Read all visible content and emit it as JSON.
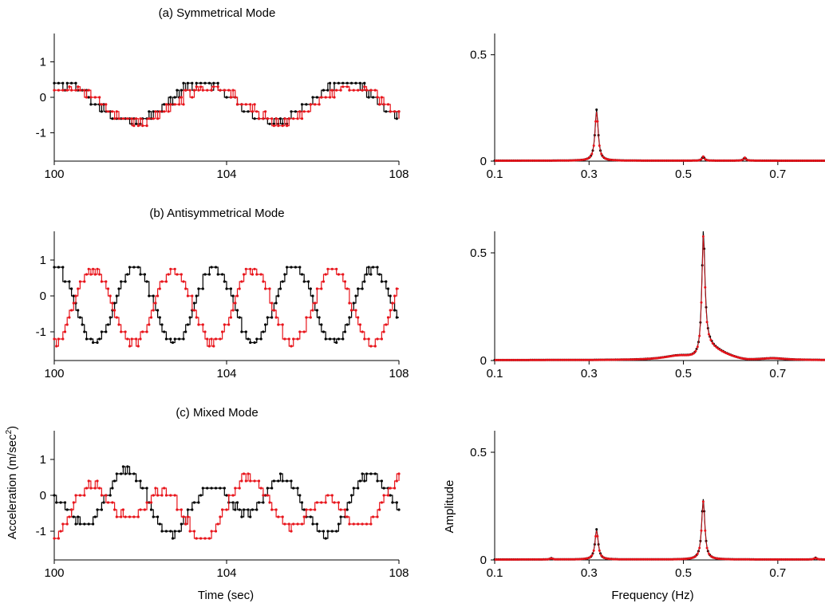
{
  "colors": {
    "series_1": "#000000",
    "series_2": "#e8141b",
    "axis": "#000000"
  },
  "labels": {
    "time_xlabel": "Time (sec)",
    "freq_xlabel": "Frequency (Hz)",
    "accel_ylabel": "Acceleration (m/sec",
    "accel_ylabel_sup": "2",
    "accel_ylabel_end": ")",
    "amp_ylabel": "Amplitude"
  },
  "chart_data": [
    {
      "type": "line",
      "title": "(a) Symmetrical Mode",
      "xlabel": "",
      "ylabel": "",
      "xlim": [
        100,
        108
      ],
      "ylim": [
        -1.8,
        1.8
      ],
      "xticks": [
        "100",
        "104",
        "108"
      ],
      "yticks": [
        "1",
        "0",
        "-1"
      ],
      "series": [
        {
          "color": "#000000",
          "period": 3.3,
          "phase": 0.7,
          "amp": 0.55,
          "offset": -0.15,
          "step": 0.2,
          "noise": 0.1,
          "x": [
            100,
            108
          ],
          "y_range": [
            -0.75,
            0.4
          ]
        },
        {
          "color": "#e8141b",
          "period": 3.3,
          "phase": 0.55,
          "amp": 0.5,
          "offset": -0.2,
          "step": 0.2,
          "noise": 0.1,
          "x": [
            100,
            108
          ],
          "y_range": [
            -0.9,
            0.3
          ]
        }
      ]
    },
    {
      "type": "line",
      "title": "",
      "xlabel": "",
      "ylabel": "",
      "xlim": [
        0.1,
        0.8
      ],
      "ylim": [
        0,
        0.6
      ],
      "xticks": [
        "0.1",
        "0.3",
        "0.5",
        "0.7"
      ],
      "yticks": [
        "0.5",
        "0"
      ],
      "peaks": [
        {
          "f": 0.316,
          "amp": 0.24,
          "width": 0.004
        },
        {
          "f": 0.542,
          "amp": 0.02,
          "width": 0.003
        },
        {
          "f": 0.63,
          "amp": 0.015,
          "width": 0.003
        }
      ],
      "series": [
        {
          "color": "#000000"
        },
        {
          "color": "#e8141b"
        }
      ]
    },
    {
      "type": "line",
      "title": "(b) Antisymmetrical Mode",
      "xlabel": "",
      "ylabel": "",
      "xlim": [
        100,
        108
      ],
      "ylim": [
        -1.8,
        1.8
      ],
      "xticks": [
        "100",
        "104",
        "108"
      ],
      "yticks": [
        "1",
        "0",
        "-1"
      ],
      "series": [
        {
          "color": "#000000",
          "period": 1.85,
          "phase": 0.47,
          "amp": 1.05,
          "offset": -0.25,
          "step": 0.2,
          "noise": 0.08,
          "x": [
            100,
            108
          ],
          "y_range": [
            -1.3,
            0.8
          ]
        },
        {
          "color": "#e8141b",
          "period": 1.85,
          "phase": 0.5,
          "amp": -1.05,
          "offset": -0.3,
          "step": 0.2,
          "noise": 0.08,
          "x": [
            100,
            108
          ],
          "y_range": [
            -1.4,
            0.75
          ]
        }
      ]
    },
    {
      "type": "line",
      "title": "",
      "xlabel": "",
      "ylabel": "",
      "xlim": [
        0.1,
        0.8
      ],
      "ylim": [
        0,
        0.6
      ],
      "xticks": [
        "0.1",
        "0.3",
        "0.5",
        "0.7"
      ],
      "yticks": [
        "0.5",
        "0"
      ],
      "peaks": [
        {
          "f": 0.542,
          "amp": 0.54,
          "width": 0.004
        },
        {
          "f": 0.49,
          "amp": 0.02,
          "width": 0.04
        },
        {
          "f": 0.69,
          "amp": 0.008,
          "width": 0.03
        }
      ],
      "tail": {
        "from": 0.542,
        "to": 0.64,
        "amp": 0.08
      },
      "series": [
        {
          "color": "#000000"
        },
        {
          "color": "#e8141b"
        }
      ]
    },
    {
      "type": "line",
      "title": "(c) Mixed Mode",
      "xlabel": "Time (sec)",
      "ylabel": "Acceleration (m/sec2)",
      "xlim": [
        100,
        108
      ],
      "ylim": [
        -1.8,
        1.8
      ],
      "xticks": [
        "100",
        "104",
        "108"
      ],
      "yticks": [
        "1",
        "0",
        "-1"
      ],
      "mixed": true,
      "series": [
        {
          "color": "#000000",
          "f1": 0.316,
          "a1": 0.35,
          "f2": 0.542,
          "a2": 0.6,
          "ph1": 1.2,
          "ph2": 0.8,
          "offset": -0.2,
          "step": 0.2,
          "noise": 0.1,
          "x": [
            100,
            108
          ],
          "y_range": [
            -1.2,
            1.0
          ]
        },
        {
          "color": "#e8141b",
          "f1": 0.316,
          "a1": 0.35,
          "f2": 0.542,
          "a2": -0.6,
          "ph1": 1.0,
          "ph2": 0.9,
          "offset": -0.35,
          "step": 0.2,
          "noise": 0.1,
          "x": [
            100,
            108
          ],
          "y_range": [
            -1.2,
            0.6
          ]
        }
      ]
    },
    {
      "type": "line",
      "title": "",
      "xlabel": "Frequency (Hz)",
      "ylabel": "Amplitude",
      "xlim": [
        0.1,
        0.8
      ],
      "ylim": [
        0,
        0.6
      ],
      "xticks": [
        "0.1",
        "0.3",
        "0.5",
        "0.7"
      ],
      "yticks": [
        "0.5",
        "0"
      ],
      "peaks": [
        {
          "f": 0.316,
          "amp": 0.14,
          "width": 0.004
        },
        {
          "f": 0.542,
          "amp": 0.28,
          "width": 0.004
        },
        {
          "f": 0.22,
          "amp": 0.006,
          "width": 0.003
        },
        {
          "f": 0.78,
          "amp": 0.008,
          "width": 0.003
        }
      ],
      "series": [
        {
          "color": "#000000"
        },
        {
          "color": "#e8141b"
        }
      ]
    }
  ]
}
